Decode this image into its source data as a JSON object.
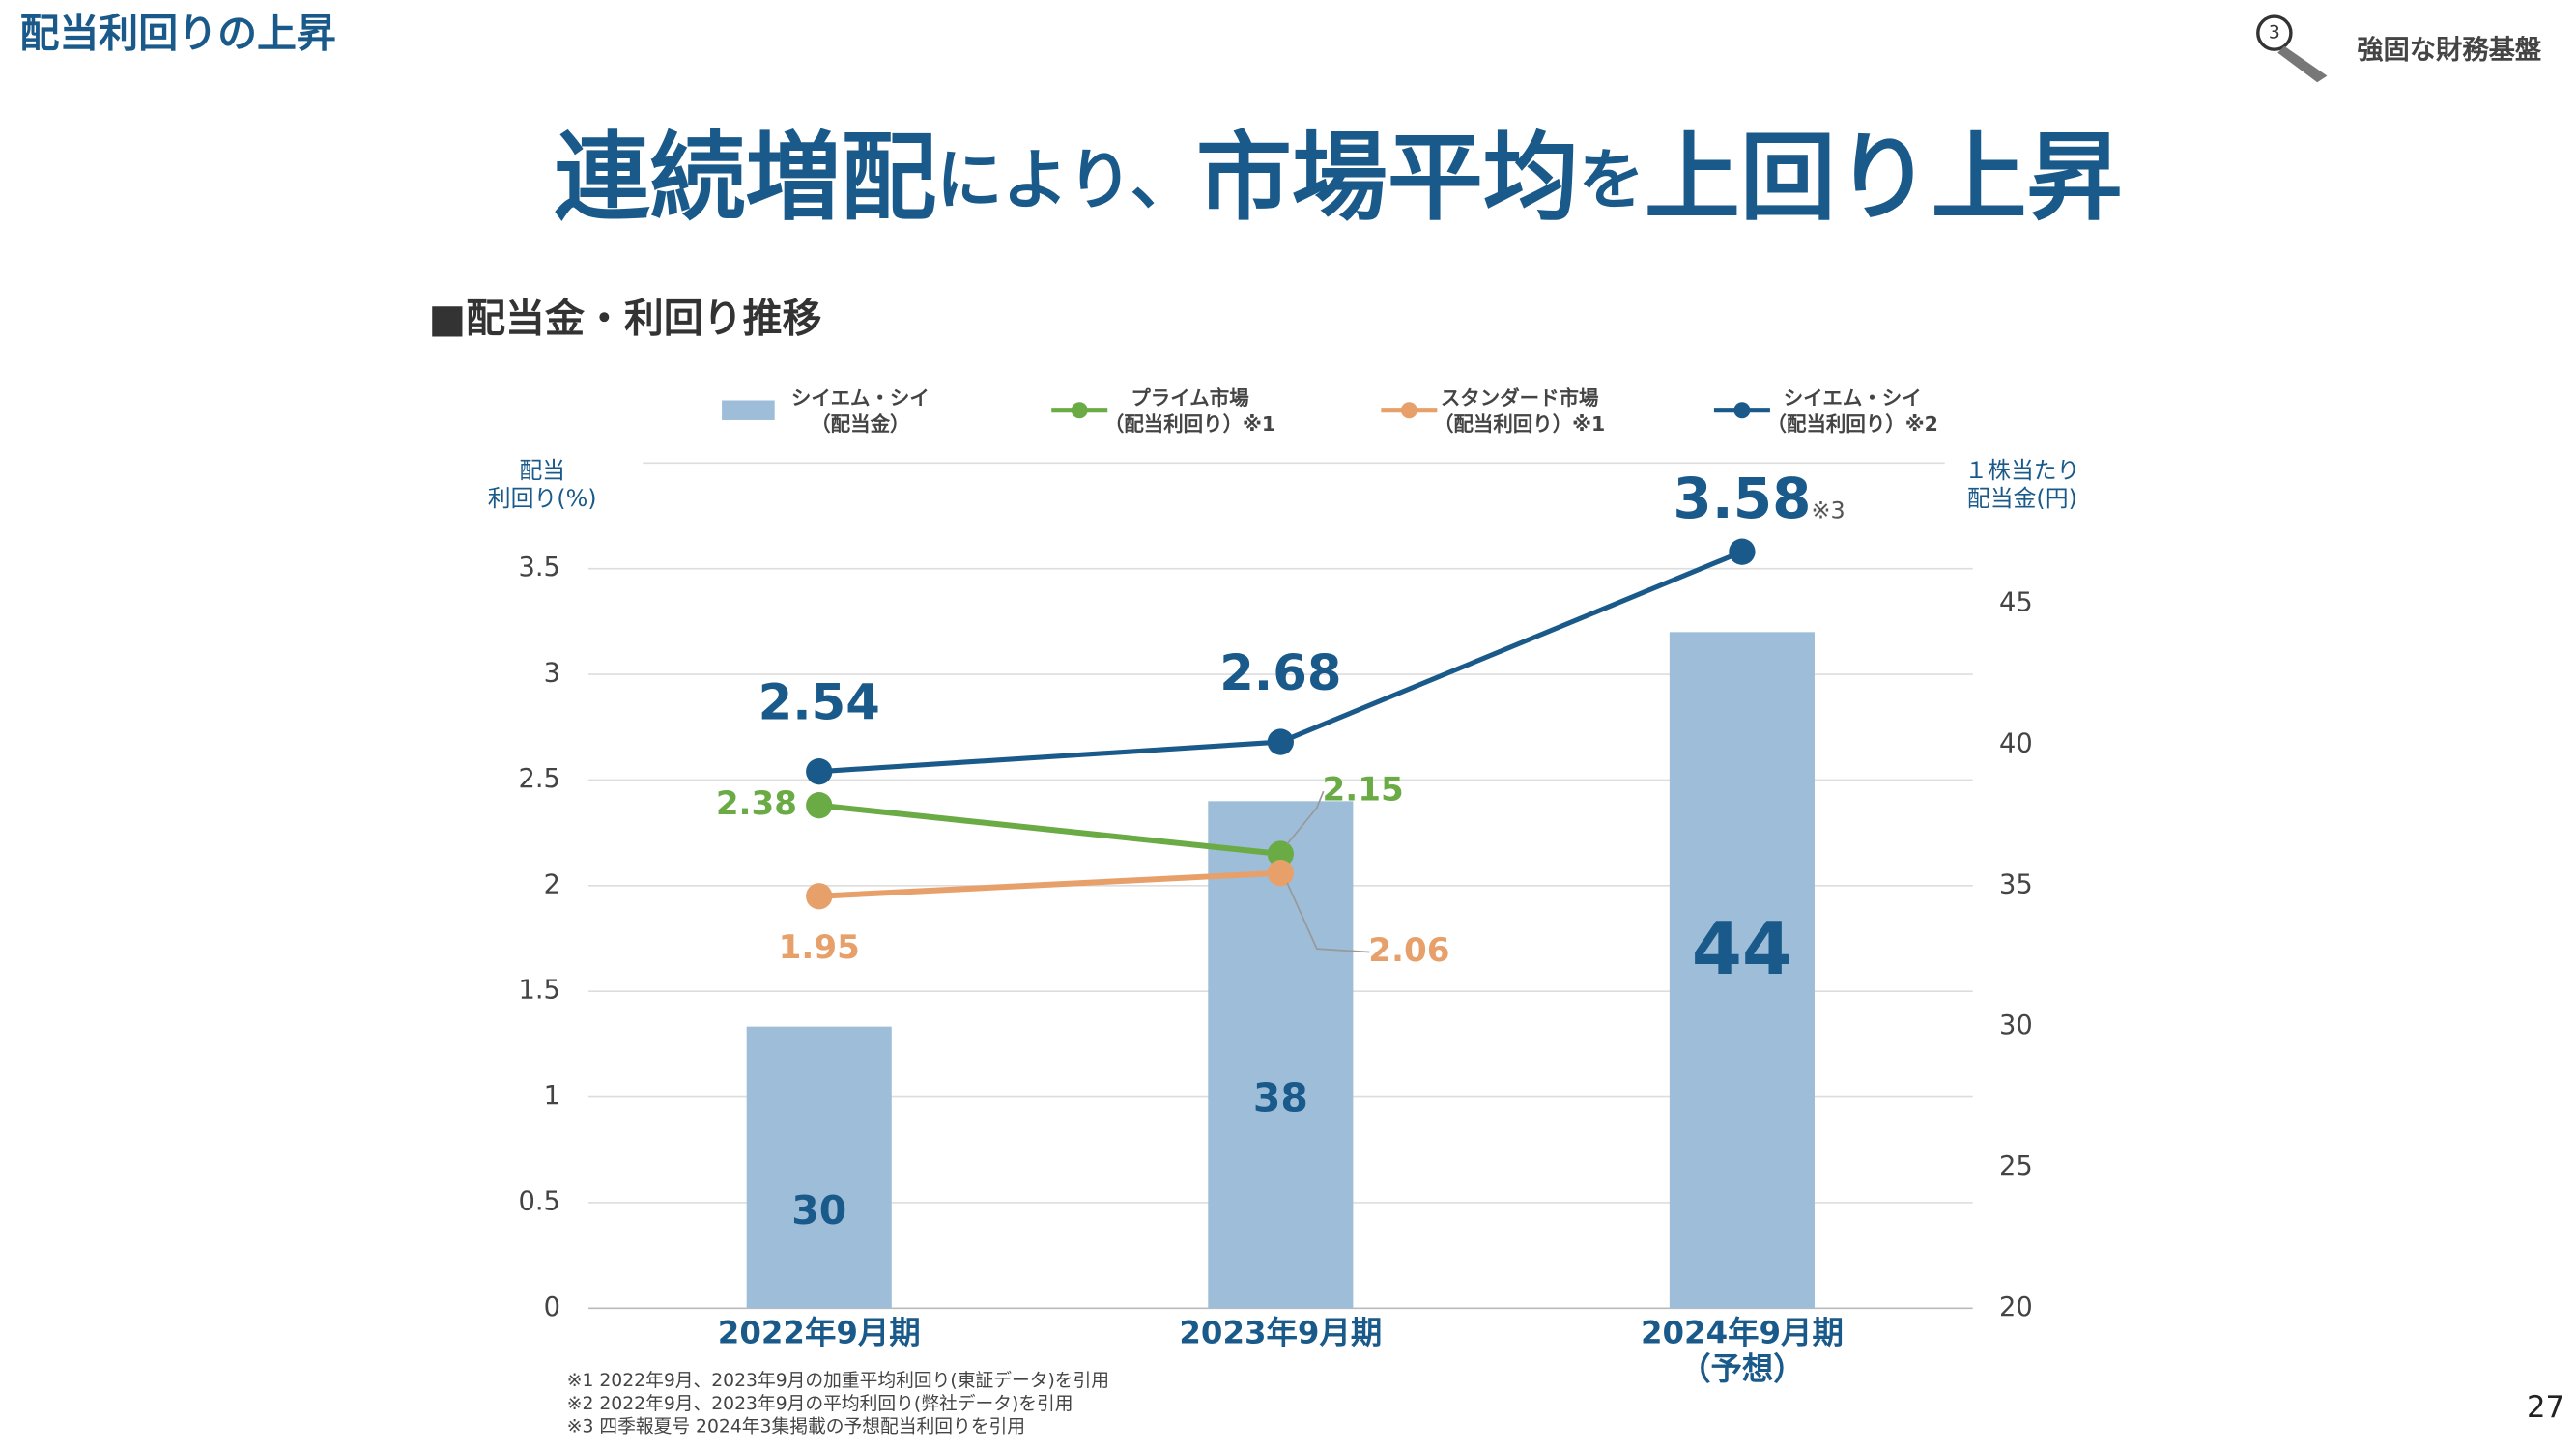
{
  "header": {
    "section": "配当利回りの上昇",
    "badge": "強固な財務基盤",
    "badge_number": "3",
    "page": "27"
  },
  "headline": [
    "連続増配",
    "により、",
    "市場平均",
    "を",
    "上回り上昇"
  ],
  "subtitle": "■配当金・利回り推移",
  "chart_data": {
    "type": "combo",
    "categories": [
      "2022年9月期",
      "2023年9月期",
      "2024年9月期\n（予想）"
    ],
    "ylabel": "配当\n利回り(%)",
    "y2label": "１株当たり\n配当金(円)",
    "ylim": [
      0,
      4
    ],
    "yticks": [
      0,
      0.5,
      1,
      1.5,
      2,
      2.5,
      3,
      3.5
    ],
    "y2lim": [
      20,
      50
    ],
    "y2ticks": [
      20,
      25,
      30,
      35,
      40,
      45
    ],
    "grid": true,
    "series": [
      {
        "name": "シイエム・シイ\n（配当金）",
        "type": "bar",
        "axis": "y2",
        "color": "#9dbdd9",
        "values": [
          30,
          38,
          44
        ]
      },
      {
        "name": "プライム市場\n（配当利回り）※1",
        "type": "line",
        "color": "#6aab46",
        "values": [
          2.38,
          2.15,
          null
        ]
      },
      {
        "name": "スタンダード市場\n（配当利回り）※1",
        "type": "line",
        "color": "#e8a06a",
        "values": [
          1.95,
          2.06,
          null
        ]
      },
      {
        "name": "シイエム・シイ\n（配当利回り）※2",
        "type": "line",
        "color": "#1a5a8a",
        "values": [
          2.54,
          2.68,
          3.58
        ]
      }
    ],
    "annotation": "※3"
  },
  "footnotes": [
    "※1 2022年9月、2023年9月の加重平均利回り(東証データ)を引用",
    "※2 2022年9月、2023年9月の平均利回り(弊社データ)を引用",
    "※3 四季報夏号 2024年3集掲載の予想配当利回りを引用"
  ]
}
